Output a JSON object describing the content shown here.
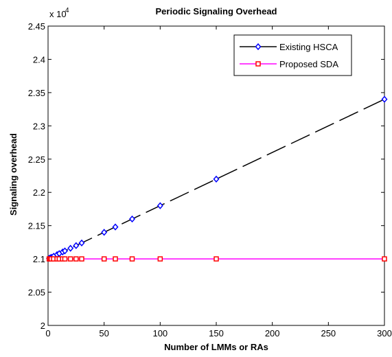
{
  "chart_data": {
    "type": "line",
    "title": "Periodic Signaling Overhead",
    "xlabel": "Number of LMMs or RAs",
    "ylabel": "Signaling overhead",
    "xlim": [
      0,
      300
    ],
    "ylim": [
      2.0,
      2.45
    ],
    "y_multiplier_label": "x 10",
    "y_multiplier_exponent": "4",
    "x_ticks": [
      0,
      50,
      100,
      150,
      200,
      250,
      300
    ],
    "x_tick_labels": [
      "0",
      "50",
      "100",
      "150",
      "200",
      "250",
      "300"
    ],
    "y_ticks": [
      2.0,
      2.05,
      2.1,
      2.15,
      2.2,
      2.25,
      2.3,
      2.35,
      2.4,
      2.45
    ],
    "y_tick_labels": [
      "2",
      "2.05",
      "2.1",
      "2.15",
      "2.2",
      "2.25",
      "2.3",
      "2.35",
      "2.4",
      "2.45"
    ],
    "grid": false,
    "legend_position": "top-right",
    "series": [
      {
        "name": "Existing HSCA",
        "color": "#000000",
        "marker_color": "#0000ff",
        "marker": "diamond",
        "line_style": "dashed",
        "x": [
          1,
          2,
          3,
          5,
          8,
          10,
          13,
          15,
          20,
          25,
          30,
          50,
          60,
          75,
          100,
          150,
          300
        ],
        "y": [
          2.1008,
          2.1016,
          2.1024,
          2.104,
          2.1064,
          2.108,
          2.1104,
          2.112,
          2.116,
          2.12,
          2.124,
          2.14,
          2.148,
          2.16,
          2.18,
          2.22,
          2.34
        ]
      },
      {
        "name": "Proposed SDA",
        "color": "#ff00ff",
        "marker_color": "#ff0000",
        "marker": "square",
        "line_style": "solid",
        "x": [
          1,
          2,
          3,
          5,
          8,
          10,
          13,
          15,
          20,
          25,
          30,
          50,
          60,
          75,
          100,
          150,
          300
        ],
        "y": [
          2.1,
          2.1,
          2.1,
          2.1,
          2.1,
          2.1,
          2.1,
          2.1,
          2.1,
          2.1,
          2.1,
          2.1,
          2.1,
          2.1,
          2.1,
          2.1,
          2.1
        ]
      }
    ]
  }
}
